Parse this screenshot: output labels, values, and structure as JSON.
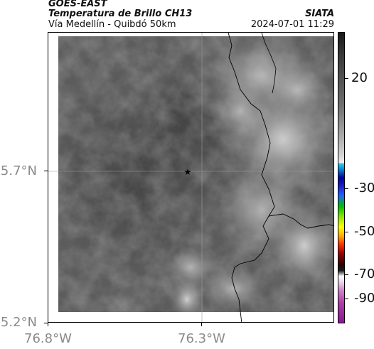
{
  "header": {
    "source": "GOES-EAST",
    "product": "Temperatura de Brillo CH13",
    "region": "Vía Medellín - Quibdó 50km",
    "agency": "SIATA",
    "datetime": "2024-07-01 11:29"
  },
  "map": {
    "y_ticks": [
      {
        "label": "5.7°N",
        "value": 5.7
      },
      {
        "label": "5.2°N",
        "value": 5.2
      }
    ],
    "x_ticks": [
      {
        "label": "76.8°W",
        "value": -76.8
      },
      {
        "label": "76.3°W",
        "value": -76.3
      }
    ],
    "marker": {
      "symbol": "★",
      "name": "center-star"
    },
    "colors": {
      "cloud_light": "#cfcfcf",
      "ground_dark": "#505050",
      "border": "#000000"
    }
  },
  "colorbar": {
    "ticks": [
      {
        "label": "20",
        "value": 20
      },
      {
        "label": "-30",
        "value": -30
      },
      {
        "label": "-50",
        "value": -50
      },
      {
        "label": "-70",
        "value": -70
      },
      {
        "label": "-90",
        "value": -90
      }
    ],
    "range": [
      -95,
      40
    ]
  }
}
